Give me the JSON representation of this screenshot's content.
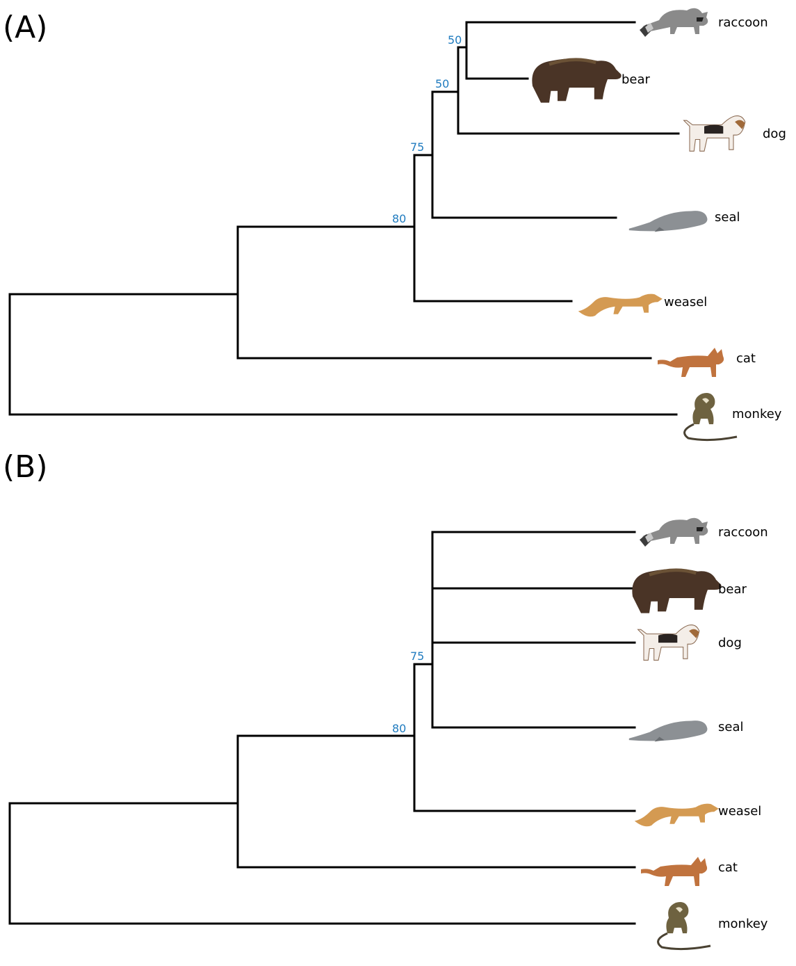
{
  "panels": [
    {
      "label": "(A)",
      "taxa": [
        "raccoon",
        "bear",
        "dog",
        "seal",
        "weasel",
        "cat",
        "monkey"
      ],
      "supports": [
        "50",
        "50",
        "75",
        "80"
      ]
    },
    {
      "label": "(B)",
      "taxa": [
        "raccoon",
        "bear",
        "dog",
        "seal",
        "weasel",
        "cat",
        "monkey"
      ],
      "supports": [
        "75",
        "80"
      ]
    }
  ],
  "colors": {
    "branch": "#000000",
    "support": "#1f7bbf"
  },
  "icons": [
    "raccoon-icon",
    "bear-icon",
    "dog-icon",
    "seal-icon",
    "weasel-icon",
    "cat-icon",
    "monkey-icon"
  ]
}
